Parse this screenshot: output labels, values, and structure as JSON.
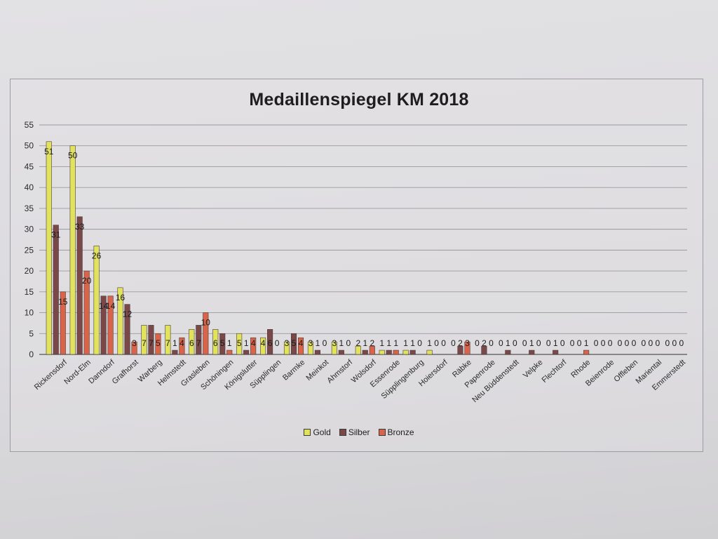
{
  "chart_data": {
    "type": "bar",
    "title": "Medaillenspiegel KM 2018",
    "xlabel": "",
    "ylabel": "",
    "ylim": [
      0,
      55
    ],
    "yticks": [
      0,
      5,
      10,
      15,
      20,
      25,
      30,
      35,
      40,
      45,
      50,
      55
    ],
    "grid": true,
    "legend_position": "bottom",
    "categories": [
      "Rickensdorf",
      "Nord-Elm",
      "Danndorf",
      "Grafhorst",
      "Warberg",
      "Helmstedt",
      "Grasleben",
      "Schöningen",
      "Königslutter",
      "Süpplingen",
      "Barmke",
      "Meinkot",
      "Ahmstorf",
      "Wolsdorf",
      "Essenrode",
      "Süpplingenburg",
      "Hoiersdorf",
      "Räbke",
      "Papenrode",
      "Neu Büddenstedt",
      "Velpke",
      "Flechtorf",
      "Rhode",
      "Beienrode",
      "Offleben",
      "Mariental",
      "Emmerstedt"
    ],
    "series": [
      {
        "name": "Gold",
        "color": "#e2e35c",
        "values": [
          51,
          50,
          26,
          16,
          7,
          7,
          6,
          6,
          5,
          4,
          3,
          3,
          3,
          2,
          1,
          1,
          1,
          0,
          0,
          0,
          0,
          0,
          0,
          0,
          0,
          0,
          0
        ]
      },
      {
        "name": "Silber",
        "color": "#7a4848",
        "values": [
          31,
          33,
          14,
          12,
          7,
          1,
          7,
          5,
          1,
          6,
          5,
          1,
          1,
          1,
          1,
          1,
          0,
          2,
          2,
          1,
          1,
          1,
          0,
          0,
          0,
          0,
          0
        ]
      },
      {
        "name": "Bronze",
        "color": "#d9644a",
        "values": [
          15,
          20,
          14,
          3,
          5,
          4,
          10,
          1,
          4,
          0,
          4,
          0,
          0,
          2,
          1,
          0,
          0,
          3,
          0,
          0,
          0,
          0,
          1,
          0,
          0,
          0,
          0
        ]
      }
    ]
  }
}
